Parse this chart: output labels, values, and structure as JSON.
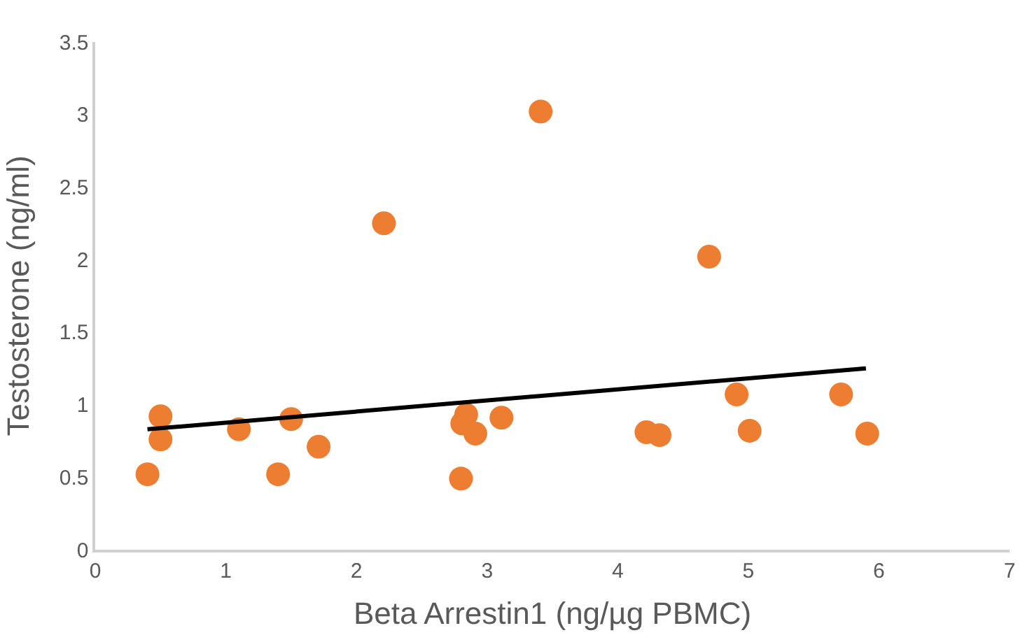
{
  "chart_data": {
    "type": "scatter",
    "xlabel": "Beta Arrestin1 (ng/µg PBMC)",
    "ylabel": "Testosterone (ng/ml)",
    "xlim": [
      0,
      7
    ],
    "xticks": [
      0,
      1,
      2,
      3,
      4,
      5,
      6,
      7
    ],
    "ylim": [
      0,
      3.5
    ],
    "yticks": [
      0,
      0.5,
      1,
      1.5,
      2,
      2.5,
      3,
      3.5
    ],
    "grid": false,
    "series": [
      {
        "marker": "circle",
        "color": "#ed7d31",
        "x": [
          0.4,
          0.5,
          0.5,
          1.1,
          1.4,
          1.5,
          1.71,
          2.21,
          2.8,
          2.84,
          2.81,
          2.91,
          3.11,
          3.41,
          4.22,
          4.32,
          4.7,
          4.91,
          5.01,
          5.71,
          5.91
        ],
        "values": [
          0.52,
          0.92,
          0.76,
          0.83,
          0.52,
          0.9,
          0.71,
          2.25,
          0.49,
          0.93,
          0.87,
          0.8,
          0.91,
          3.02,
          0.81,
          0.79,
          2.02,
          1.07,
          0.82,
          1.07,
          0.8
        ]
      },
      {
        "type": "line",
        "marker": "none",
        "color": "#000000",
        "line_style": "solid",
        "x": [
          0.4,
          5.9
        ],
        "values": [
          0.83,
          1.25
        ]
      }
    ]
  }
}
